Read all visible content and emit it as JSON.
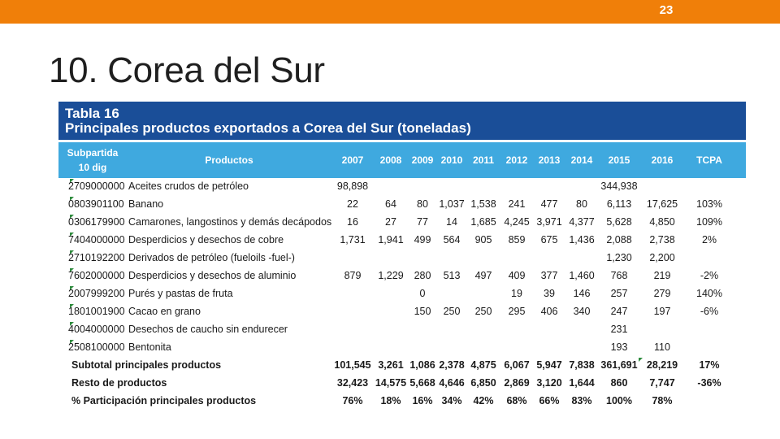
{
  "slide": {
    "page_number": "23",
    "title": "10. Corea del Sur"
  },
  "table": {
    "caption_line1": "Tabla 16",
    "caption_line2": "Principales productos exportados a Corea del Sur (toneladas)",
    "header": {
      "subpartida": "Subpartida\n10 dig",
      "productos": "Productos",
      "years": [
        "2007",
        "2008",
        "2009",
        "2010",
        "2011",
        "2012",
        "2013",
        "2014",
        "2015",
        "2016"
      ],
      "tcpa": "TCPA"
    },
    "rows": [
      {
        "code": "2709000000",
        "name": "Aceites crudos de petróleo",
        "values": [
          "98,898",
          "",
          "",
          "",
          "",
          "",
          "",
          "",
          "344,938",
          ""
        ],
        "tcpa": ""
      },
      {
        "code": "0803901100",
        "name": "Banano",
        "values": [
          "22",
          "64",
          "80",
          "1,037",
          "1,538",
          "241",
          "477",
          "80",
          "6,113",
          "17,625"
        ],
        "tcpa": "103%"
      },
      {
        "code": "0306179900",
        "name": "Camarones, langostinos y demás decápodos",
        "values": [
          "16",
          "27",
          "77",
          "14",
          "1,685",
          "4,245",
          "3,971",
          "4,377",
          "5,628",
          "4,850"
        ],
        "tcpa": "109%"
      },
      {
        "code": "7404000000",
        "name": "Desperdicios y desechos de cobre",
        "values": [
          "1,731",
          "1,941",
          "499",
          "564",
          "905",
          "859",
          "675",
          "1,436",
          "2,088",
          "2,738"
        ],
        "tcpa": "2%"
      },
      {
        "code": "2710192200",
        "name": "Derivados de petróleo (fueloils -fuel-)",
        "values": [
          "",
          "",
          "",
          "",
          "",
          "",
          "",
          "",
          "1,230",
          "2,200"
        ],
        "tcpa": ""
      },
      {
        "code": "7602000000",
        "name": "Desperdicios y desechos de aluminio",
        "values": [
          "879",
          "1,229",
          "280",
          "513",
          "497",
          "409",
          "377",
          "1,460",
          "768",
          "219"
        ],
        "tcpa": "-2%"
      },
      {
        "code": "2007999200",
        "name": "Purés y pastas de fruta",
        "values": [
          "",
          "",
          "0",
          "",
          "",
          "19",
          "39",
          "146",
          "257",
          "279"
        ],
        "tcpa": "140%"
      },
      {
        "code": "1801001900",
        "name": "Cacao en grano",
        "values": [
          "",
          "",
          "150",
          "250",
          "250",
          "295",
          "406",
          "340",
          "247",
          "197"
        ],
        "tcpa": "-6%"
      },
      {
        "code": "4004000000",
        "name": "Desechos de caucho sin endurecer",
        "values": [
          "",
          "",
          "",
          "",
          "",
          "",
          "",
          "",
          "231",
          ""
        ],
        "tcpa": ""
      },
      {
        "code": "2508100000",
        "name": "Bentonita",
        "values": [
          "",
          "",
          "",
          "",
          "",
          "",
          "",
          "",
          "193",
          "110"
        ],
        "tcpa": ""
      }
    ],
    "summary": [
      {
        "label": "Subtotal principales productos",
        "values": [
          "101,545",
          "3,261",
          "1,086",
          "2,378",
          "4,875",
          "6,067",
          "5,947",
          "7,838",
          "361,691",
          "28,219"
        ],
        "tcpa": "17%"
      },
      {
        "label": "Resto de productos",
        "values": [
          "32,423",
          "14,575",
          "5,668",
          "4,646",
          "6,850",
          "2,869",
          "3,120",
          "1,644",
          "860",
          "7,747"
        ],
        "tcpa": "-36%"
      },
      {
        "label": "% Participación principales productos",
        "values": [
          "76%",
          "18%",
          "16%",
          "34%",
          "42%",
          "68%",
          "66%",
          "83%",
          "100%",
          "78%"
        ],
        "tcpa": ""
      }
    ]
  },
  "colors": {
    "topbar": "#f07f09",
    "caption_bg": "#1a4e98",
    "header_bg": "#3fa9df",
    "cell_flag": "#2e8b3d"
  }
}
